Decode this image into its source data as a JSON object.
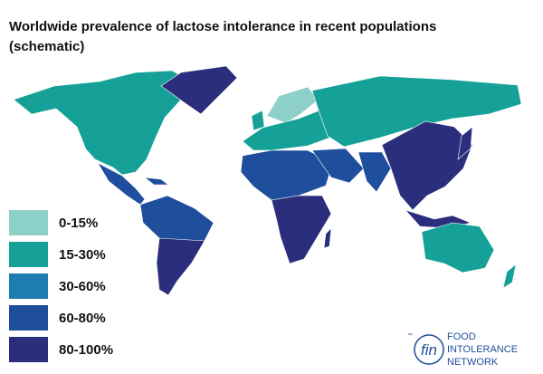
{
  "header": {
    "title": "Worldwide prevalence of lactose intolerance in recent populations",
    "subtitle": "(schematic)"
  },
  "legend": [
    {
      "label": "0-15%",
      "color": "#8dd0c8"
    },
    {
      "label": "15-30%",
      "color": "#15a197"
    },
    {
      "label": "30-60%",
      "color": "#1e7db0"
    },
    {
      "label": "60-80%",
      "color": "#1f4e9c"
    },
    {
      "label": "80-100%",
      "color": "#2b2e7c"
    }
  ],
  "logo": {
    "tm": "™",
    "mark": "fin",
    "lines": [
      "FOOD",
      "INTOLERANCE",
      "NETWORK"
    ]
  }
}
